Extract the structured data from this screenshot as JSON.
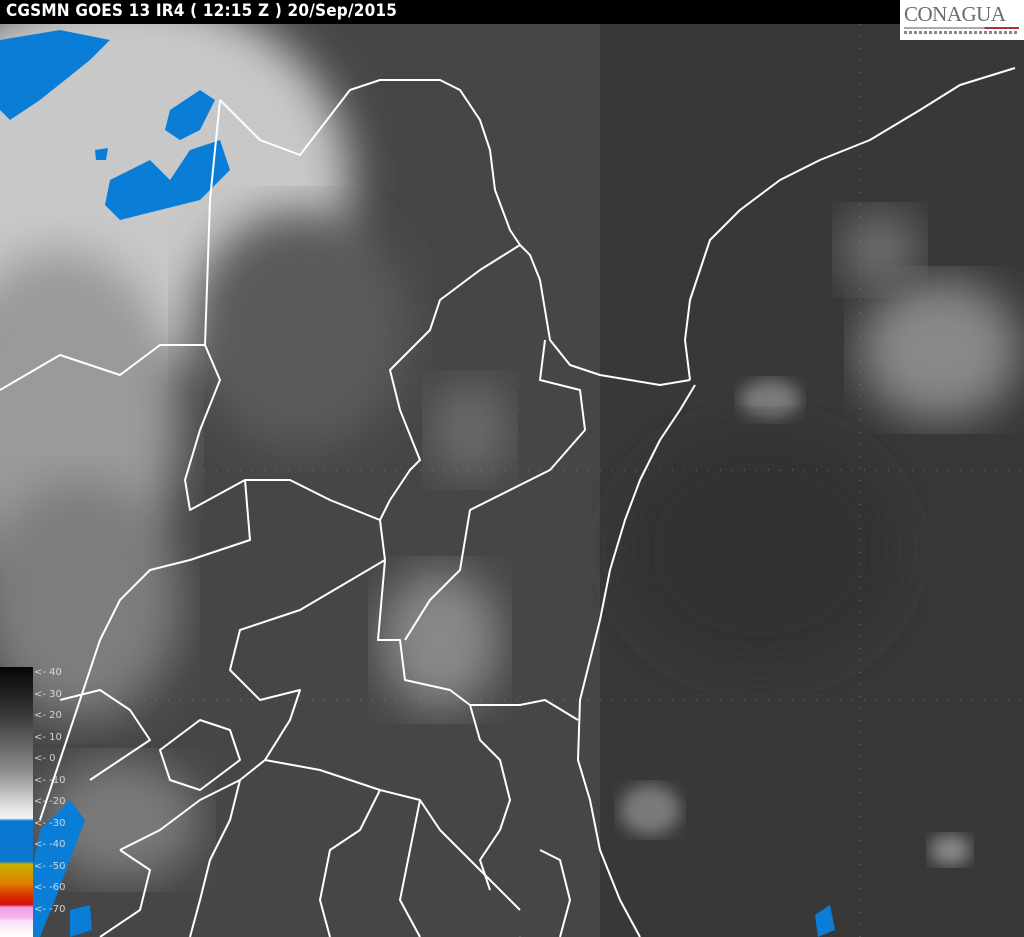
{
  "header": {
    "title": "CGSMN GOES 13 IR4 ( 12:15 Z ) 20/Sep/2015"
  },
  "logo": {
    "text": "CONAGUA"
  },
  "colorbar": {
    "labels": [
      "<- 40",
      "<- 30",
      "<- 20",
      "<- 10",
      "<- 0",
      "<- -10",
      "<- -20",
      "<- -30",
      "<- -40",
      "<- -50",
      "<- -60",
      "<- -70"
    ],
    "colors": [
      "#000000",
      "#808080",
      "#f0f0f0",
      "#0a78d0",
      "#c8b000",
      "#e08000",
      "#d42000",
      "#f0a0e0",
      "#ffffff"
    ]
  },
  "map": {
    "border_color": "#ffffff",
    "cloud_cold_color": "#0a78d0"
  }
}
